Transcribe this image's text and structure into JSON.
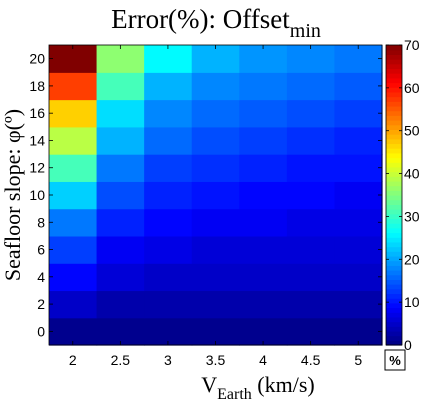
{
  "chart_data": {
    "type": "heatmap",
    "title": "Error(%): Offset",
    "title_subscript": "min",
    "xlabel": "V",
    "xlabel_subscript": "Earth",
    "xlabel_suffix": " (km/s)",
    "ylabel": "Seafloor slope: φ(º)",
    "x": [
      2,
      2.5,
      3,
      3.5,
      4,
      4.5,
      5
    ],
    "x_tick_labels": [
      "2",
      "2.5",
      "3",
      "3.5",
      "4",
      "4.5",
      "5"
    ],
    "y": [
      0,
      2,
      4,
      6,
      8,
      10,
      12,
      14,
      16,
      18,
      20
    ],
    "y_tick_labels": [
      "0",
      "2",
      "4",
      "6",
      "8",
      "10",
      "12",
      "14",
      "16",
      "18",
      "20"
    ],
    "colorbar": {
      "colormap": "jet",
      "range": [
        0,
        70
      ],
      "ticks": [
        0,
        10,
        20,
        30,
        40,
        50,
        60,
        70
      ],
      "tick_labels": [
        "0",
        "10",
        "20",
        "30",
        "40",
        "50",
        "60",
        "70"
      ],
      "unit_label": "%"
    },
    "values": [
      [
        1,
        1,
        1,
        1,
        1,
        1,
        1
      ],
      [
        5,
        3,
        3,
        3,
        3,
        3,
        3
      ],
      [
        9,
        6,
        5,
        5,
        5,
        5,
        5
      ],
      [
        13,
        8,
        7,
        6,
        6,
        6,
        6
      ],
      [
        17,
        11,
        9,
        8,
        8,
        7,
        7
      ],
      [
        23,
        14,
        11,
        10,
        9,
        9,
        8
      ],
      [
        31,
        17,
        13,
        12,
        11,
        10,
        10
      ],
      [
        39,
        21,
        16,
        14,
        13,
        12,
        11
      ],
      [
        47,
        24,
        18,
        16,
        15,
        14,
        13
      ],
      [
        57,
        31,
        21,
        18,
        17,
        16,
        15
      ],
      [
        70,
        36,
        26,
        21,
        19,
        18,
        17
      ]
    ]
  }
}
